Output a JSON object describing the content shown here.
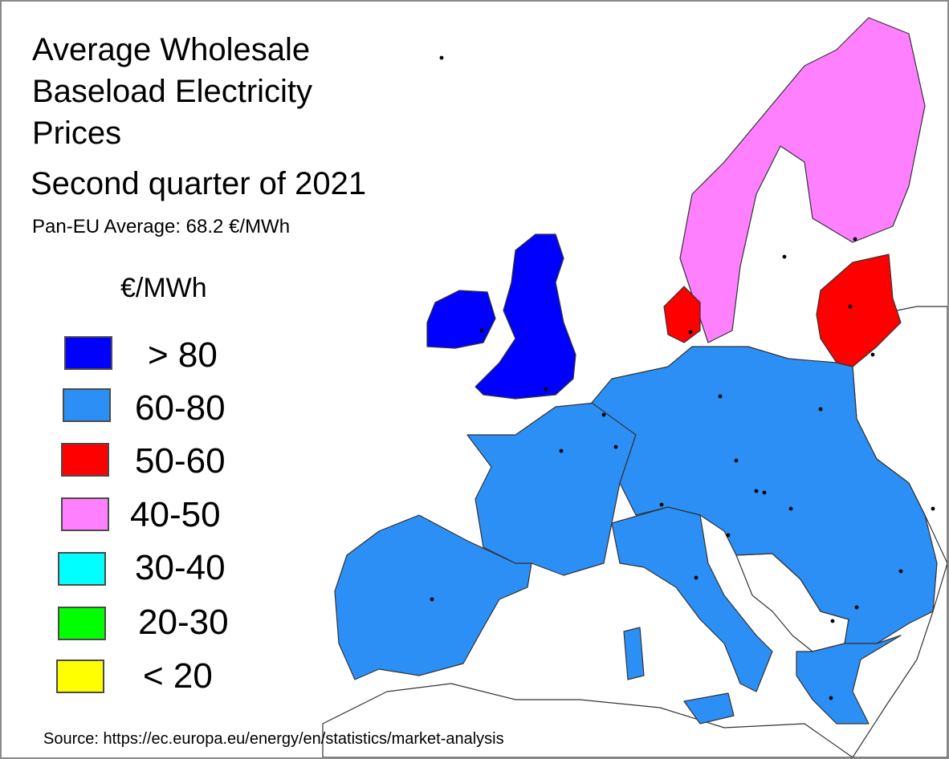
{
  "title": "Average Wholesale Baseload Electricity Prices",
  "subtitle": "Second quarter of 2021",
  "average": "Pan-EU Average:  68.2 €/MWh",
  "legend": {
    "unit": "€/MWh",
    "items": [
      {
        "label": "> 80",
        "color": "#0000ff"
      },
      {
        "label": "60-80",
        "color": "#2c8ff5"
      },
      {
        "label": "50-60",
        "color": "#ff0000"
      },
      {
        "label": "40-50",
        "color": "#ff80ff"
      },
      {
        "label": "30-40",
        "color": "#00ffff"
      },
      {
        "label": "20-30",
        "color": "#00ff00"
      },
      {
        "label": "< 20",
        "color": "#ffff00"
      }
    ]
  },
  "source": "Source: https://ec.europa.eu/energy/en/statistics/market-analysis",
  "map_colors": {
    "over_80": "#0000ff",
    "range_60_80": "#2c8ff5",
    "range_50_60": "#ff0000",
    "range_40_50": "#ff80ff",
    "no_data": "#ffffff",
    "border": "#333333"
  }
}
